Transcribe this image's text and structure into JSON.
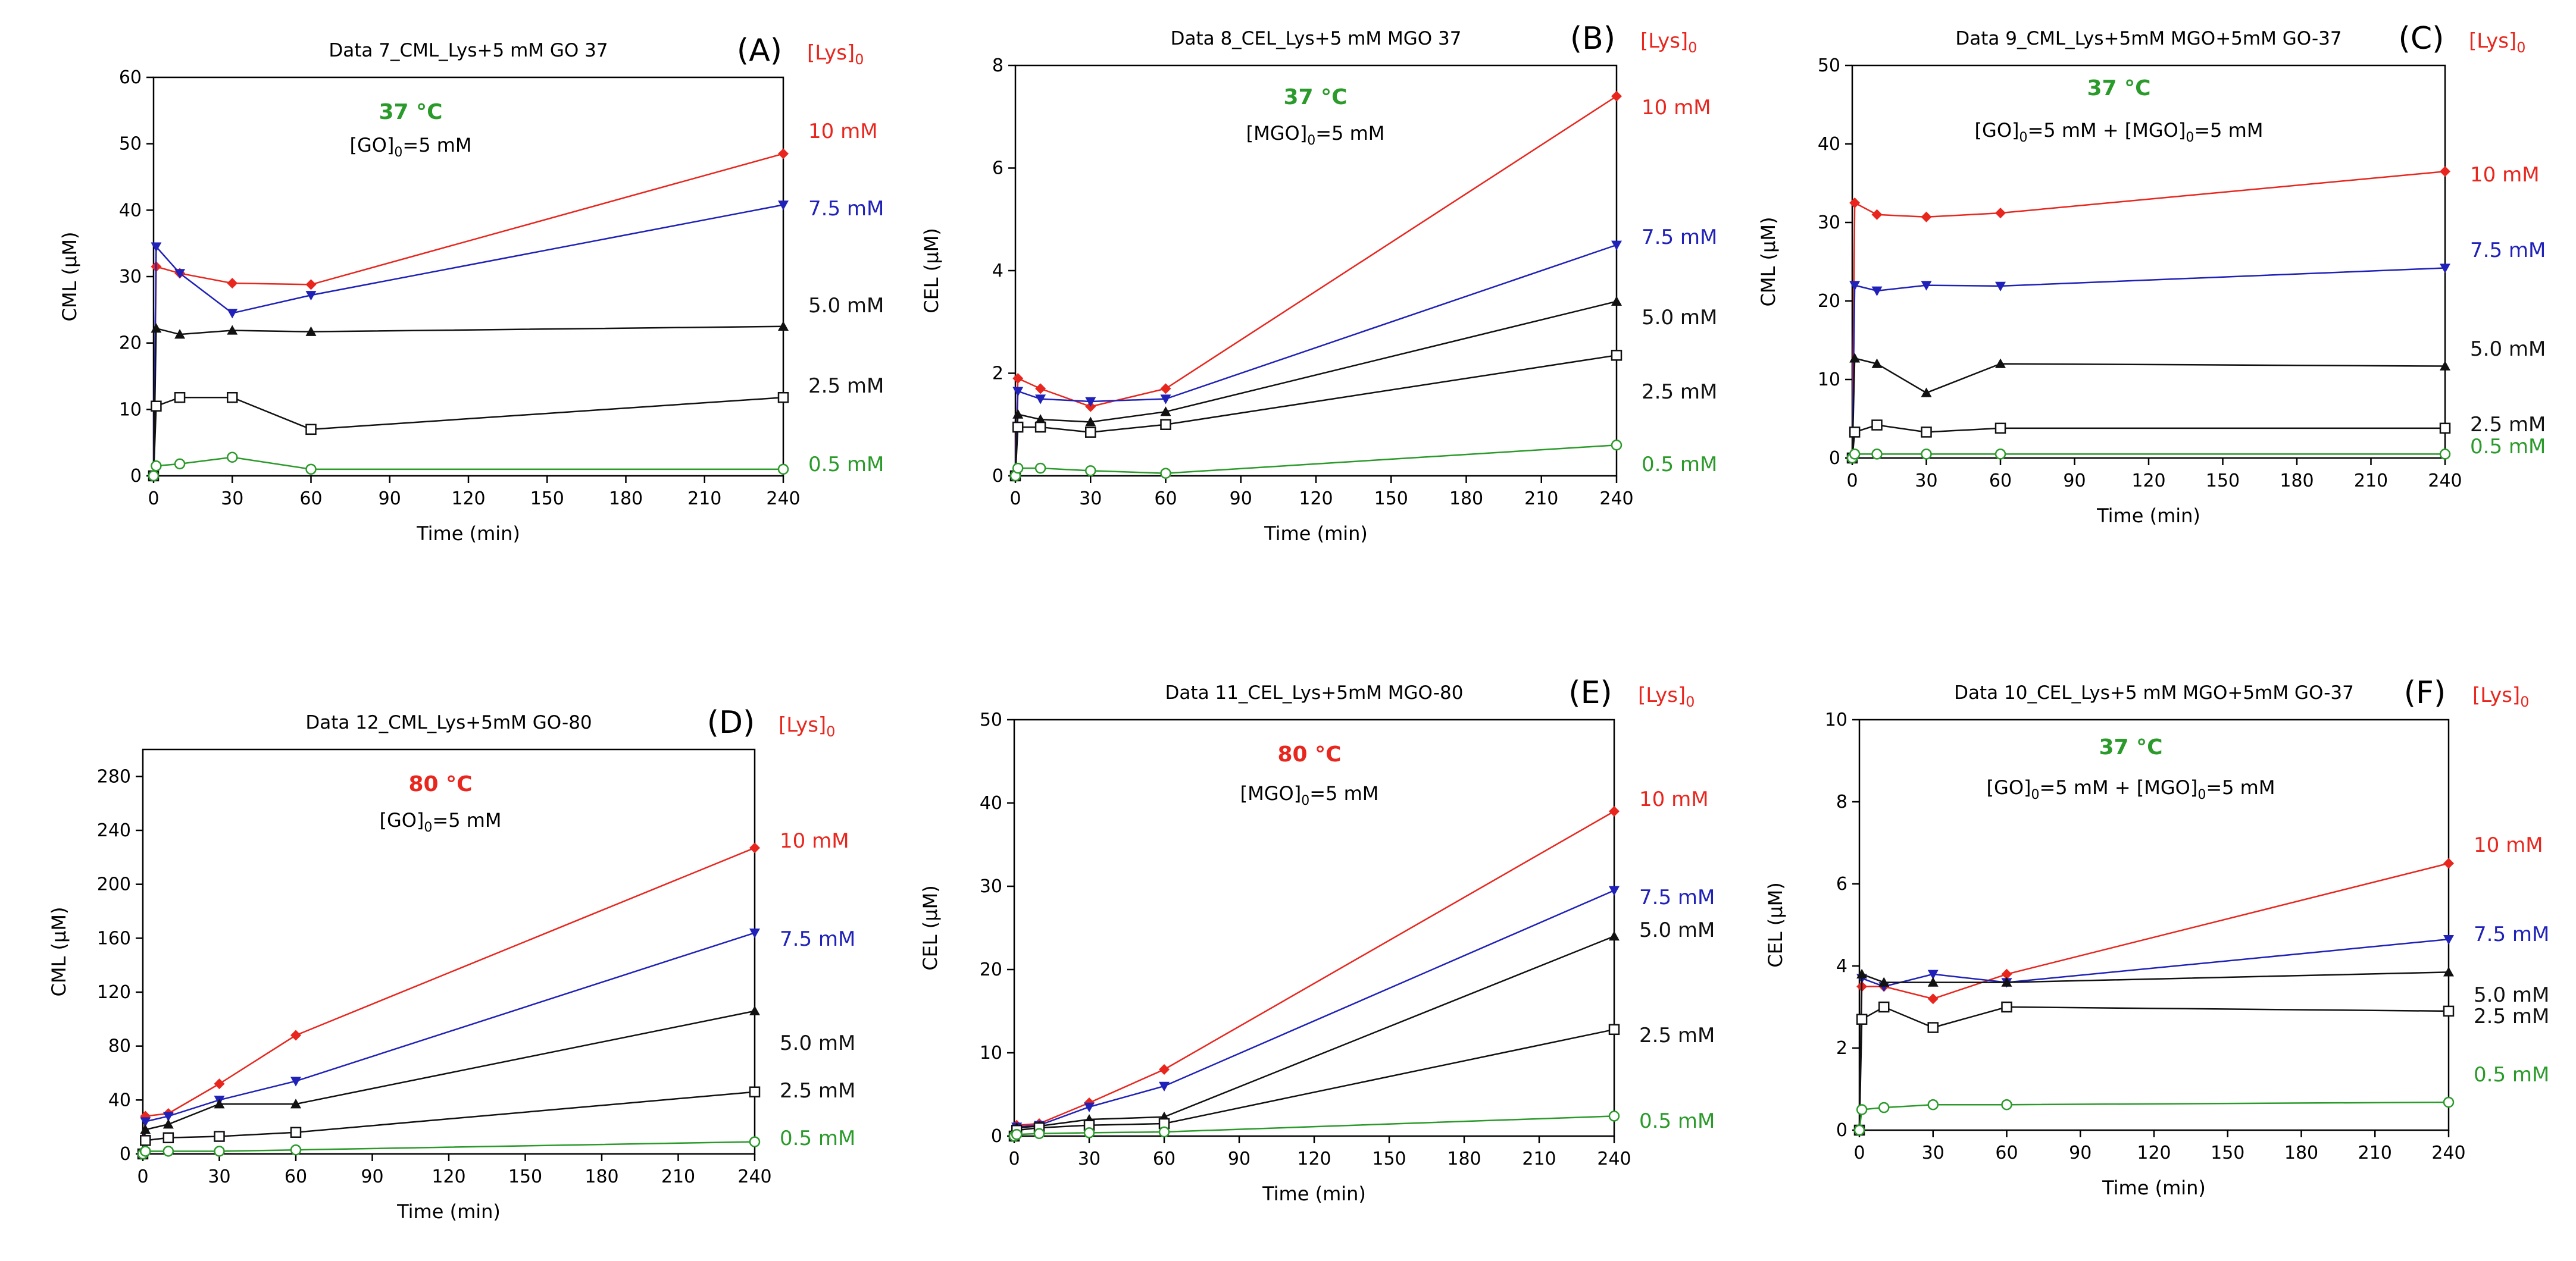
{
  "figure": {
    "description_free": true
  },
  "colors": {
    "red": "#e8261e",
    "blue": "#1f21b8",
    "black": "#111111",
    "green": "#2a9a2a",
    "axis": "#000000",
    "annot_green": "#2b8a1e",
    "annot_red": "#e8261e"
  },
  "lys_header": "[Lys]",
  "lys_header_sub": "0",
  "chart_data": [
    {
      "type": "line",
      "panel": "(A)",
      "title": "Data 7_CML_Lys+5 mM GO 37",
      "xlabel": "Time (min)",
      "ylabel": "CML (µM)",
      "xlim": [
        0,
        240
      ],
      "ylim": [
        0,
        60
      ],
      "xticks": [
        0,
        30,
        60,
        90,
        120,
        150,
        180,
        210,
        240
      ],
      "yticks": [
        0,
        10,
        20,
        30,
        40,
        50,
        60
      ],
      "temperature": "37 °C",
      "temperature_color": "green",
      "conc_prefix": "[GO]",
      "conc_sub": "0",
      "conc_suffix": "=5 mM",
      "conc_extra": null,
      "series": [
        {
          "name": "10 mM",
          "color": "red",
          "marker": "diamond",
          "x": [
            0,
            1,
            10,
            30,
            60,
            240
          ],
          "y": [
            0,
            31.5,
            30.5,
            29,
            28.8,
            48.5
          ]
        },
        {
          "name": "7.5 mM",
          "color": "blue",
          "marker": "tri-down",
          "x": [
            0,
            1,
            10,
            30,
            60,
            240
          ],
          "y": [
            0,
            34.5,
            30.5,
            24.5,
            27.2,
            40.8
          ]
        },
        {
          "name": "5.0 mM",
          "color": "black",
          "marker": "tri-up",
          "x": [
            0,
            1,
            10,
            30,
            60,
            240
          ],
          "y": [
            0,
            22.2,
            21.3,
            21.9,
            21.7,
            22.5
          ]
        },
        {
          "name": "2.5 mM",
          "color": "black",
          "marker": "square",
          "x": [
            0,
            1,
            10,
            30,
            60,
            240
          ],
          "y": [
            0,
            10.5,
            11.8,
            11.8,
            7,
            11.8
          ]
        },
        {
          "name": "0.5 mM",
          "color": "green",
          "marker": "circle",
          "x": [
            0,
            1,
            10,
            30,
            60,
            240
          ],
          "y": [
            0,
            1.5,
            1.8,
            2.8,
            1,
            1
          ]
        }
      ]
    },
    {
      "type": "line",
      "panel": "(B)",
      "title": "Data 8_CEL_Lys+5 mM MGO 37",
      "xlabel": "Time (min)",
      "ylabel": "CEL (µM)",
      "xlim": [
        0,
        240
      ],
      "ylim": [
        0,
        8
      ],
      "xticks": [
        0,
        30,
        60,
        90,
        120,
        150,
        180,
        210,
        240
      ],
      "yticks": [
        0,
        2,
        4,
        6,
        8
      ],
      "temperature": "37 °C",
      "temperature_color": "green",
      "conc_prefix": "[MGO]",
      "conc_sub": "0",
      "conc_suffix": "=5 mM",
      "conc_extra": null,
      "series": [
        {
          "name": "10 mM",
          "color": "red",
          "marker": "diamond",
          "x": [
            0,
            1,
            10,
            30,
            60,
            240
          ],
          "y": [
            0,
            1.9,
            1.7,
            1.35,
            1.7,
            7.4
          ]
        },
        {
          "name": "7.5 mM",
          "color": "blue",
          "marker": "tri-down",
          "x": [
            0,
            1,
            10,
            30,
            60,
            240
          ],
          "y": [
            0,
            1.65,
            1.5,
            1.45,
            1.5,
            4.5
          ]
        },
        {
          "name": "5.0 mM",
          "color": "black",
          "marker": "tri-up",
          "x": [
            0,
            1,
            10,
            30,
            60,
            240
          ],
          "y": [
            0,
            1.2,
            1.1,
            1.05,
            1.25,
            3.4
          ]
        },
        {
          "name": "2.5 mM",
          "color": "black",
          "marker": "square",
          "x": [
            0,
            1,
            10,
            30,
            60,
            240
          ],
          "y": [
            0,
            0.95,
            0.95,
            0.85,
            1.0,
            2.35
          ]
        },
        {
          "name": "0.5 mM",
          "color": "green",
          "marker": "circle",
          "x": [
            0,
            1,
            10,
            30,
            60,
            240
          ],
          "y": [
            0,
            0.15,
            0.15,
            0.1,
            0.05,
            0.6
          ]
        }
      ]
    },
    {
      "type": "line",
      "panel": "(C)",
      "title": "Data 9_CML_Lys+5mM MGO+5mM GO-37",
      "xlabel": "Time (min)",
      "ylabel": "CML (µM)",
      "xlim": [
        0,
        240
      ],
      "ylim": [
        0,
        50
      ],
      "xticks": [
        0,
        30,
        60,
        90,
        120,
        150,
        180,
        210,
        240
      ],
      "yticks": [
        0,
        10,
        20,
        30,
        40,
        50
      ],
      "temperature": "37 °C",
      "temperature_color": "green",
      "conc_prefix": "[GO]",
      "conc_sub": "0",
      "conc_suffix": "=5 mM + ",
      "conc_extra": {
        "prefix": "[MGO]",
        "sub": "0",
        "suffix": "=5 mM"
      },
      "series": [
        {
          "name": "10 mM",
          "color": "red",
          "marker": "diamond",
          "x": [
            0,
            1,
            10,
            30,
            60,
            240
          ],
          "y": [
            0,
            32.5,
            31,
            30.7,
            31.2,
            36.5
          ]
        },
        {
          "name": "7.5 mM",
          "color": "blue",
          "marker": "tri-down",
          "x": [
            0,
            1,
            10,
            30,
            60,
            240
          ],
          "y": [
            0,
            22,
            21.3,
            22,
            21.9,
            24.2
          ]
        },
        {
          "name": "5.0 mM",
          "color": "black",
          "marker": "tri-up",
          "x": [
            0,
            1,
            10,
            30,
            60,
            240
          ],
          "y": [
            0,
            12.7,
            12,
            8.3,
            12,
            11.7
          ]
        },
        {
          "name": "2.5 mM",
          "color": "black",
          "marker": "square",
          "x": [
            0,
            1,
            10,
            30,
            60,
            240
          ],
          "y": [
            0,
            3.3,
            4.2,
            3.3,
            3.8,
            3.8
          ]
        },
        {
          "name": "0.5 mM",
          "color": "green",
          "marker": "circle",
          "x": [
            0,
            1,
            10,
            30,
            60,
            240
          ],
          "y": [
            0,
            0.5,
            0.5,
            0.5,
            0.5,
            0.5
          ]
        }
      ]
    },
    {
      "type": "line",
      "panel": "(D)",
      "title": "Data 12_CML_Lys+5mM GO-80",
      "xlabel": "Time (min)",
      "ylabel": "CML (µM)",
      "xlim": [
        0,
        240
      ],
      "ylim": [
        0,
        300
      ],
      "xticks": [
        0,
        30,
        60,
        90,
        120,
        150,
        180,
        210,
        240
      ],
      "yticks": [
        0,
        40,
        80,
        120,
        160,
        200,
        240,
        280
      ],
      "temperature": "80 °C",
      "temperature_color": "red",
      "conc_prefix": "[GO]",
      "conc_sub": "0",
      "conc_suffix": "=5 mM",
      "conc_extra": null,
      "series": [
        {
          "name": "10 mM",
          "color": "red",
          "marker": "diamond",
          "x": [
            0,
            1,
            10,
            30,
            60,
            240
          ],
          "y": [
            0,
            28,
            30,
            52,
            88,
            227
          ]
        },
        {
          "name": "7.5 mM",
          "color": "blue",
          "marker": "tri-down",
          "x": [
            0,
            1,
            10,
            30,
            60,
            240
          ],
          "y": [
            0,
            24,
            28,
            40,
            54,
            164
          ]
        },
        {
          "name": "5.0 mM",
          "color": "black",
          "marker": "tri-up",
          "x": [
            0,
            1,
            10,
            30,
            60,
            240
          ],
          "y": [
            0,
            18,
            22,
            37,
            37,
            106
          ]
        },
        {
          "name": "2.5 mM",
          "color": "black",
          "marker": "square",
          "x": [
            0,
            1,
            10,
            30,
            60,
            240
          ],
          "y": [
            0,
            10,
            12,
            13,
            16,
            46
          ]
        },
        {
          "name": "0.5 mM",
          "color": "green",
          "marker": "circle",
          "x": [
            0,
            1,
            10,
            30,
            60,
            240
          ],
          "y": [
            0,
            2,
            2,
            2,
            3,
            9
          ]
        }
      ]
    },
    {
      "type": "line",
      "panel": "(E)",
      "title": "Data 11_CEL_Lys+5mM MGO-80",
      "xlabel": "Time (min)",
      "ylabel": "CEL (µM)",
      "xlim": [
        0,
        240
      ],
      "ylim": [
        0,
        50
      ],
      "xticks": [
        0,
        30,
        60,
        90,
        120,
        150,
        180,
        210,
        240
      ],
      "yticks": [
        0,
        10,
        20,
        30,
        40,
        50
      ],
      "temperature": "80 °C",
      "temperature_color": "red",
      "conc_prefix": "[MGO]",
      "conc_sub": "0",
      "conc_suffix": "=5 mM",
      "conc_extra": null,
      "series": [
        {
          "name": "10 mM",
          "color": "red",
          "marker": "diamond",
          "x": [
            0,
            1,
            10,
            30,
            60,
            240
          ],
          "y": [
            0,
            1.3,
            1.5,
            4,
            8,
            39
          ]
        },
        {
          "name": "7.5 mM",
          "color": "blue",
          "marker": "tri-down",
          "x": [
            0,
            1,
            10,
            30,
            60,
            240
          ],
          "y": [
            0,
            1.1,
            1.3,
            3.5,
            6,
            29.5
          ]
        },
        {
          "name": "5.0 mM",
          "color": "black",
          "marker": "tri-up",
          "x": [
            0,
            1,
            10,
            30,
            60,
            240
          ],
          "y": [
            0,
            1,
            1.2,
            2,
            2.3,
            24
          ]
        },
        {
          "name": "2.5 mM",
          "color": "black",
          "marker": "square",
          "x": [
            0,
            1,
            10,
            30,
            60,
            240
          ],
          "y": [
            0,
            0.7,
            1,
            1.3,
            1.5,
            12.8
          ]
        },
        {
          "name": "0.5 mM",
          "color": "green",
          "marker": "circle",
          "x": [
            0,
            1,
            10,
            30,
            60,
            240
          ],
          "y": [
            0,
            0.2,
            0.3,
            0.4,
            0.5,
            2.4
          ]
        }
      ]
    },
    {
      "type": "line",
      "panel": "(F)",
      "title": "Data 10_CEL_Lys+5 mM MGO+5mM GO-37",
      "xlabel": "Time (min)",
      "ylabel": "CEL (µM)",
      "xlim": [
        0,
        240
      ],
      "ylim": [
        0,
        10
      ],
      "xticks": [
        0,
        30,
        60,
        90,
        120,
        150,
        180,
        210,
        240
      ],
      "yticks": [
        0,
        2,
        4,
        6,
        8,
        10
      ],
      "temperature": "37 °C",
      "temperature_color": "green",
      "conc_prefix": "[GO]",
      "conc_sub": "0",
      "conc_suffix": "=5 mM + ",
      "conc_extra": {
        "prefix": "[MGO]",
        "sub": "0",
        "suffix": "=5 mM"
      },
      "series": [
        {
          "name": "10 mM",
          "color": "red",
          "marker": "diamond",
          "x": [
            0,
            1,
            10,
            30,
            60,
            240
          ],
          "y": [
            0,
            3.5,
            3.5,
            3.2,
            3.8,
            6.5
          ]
        },
        {
          "name": "7.5 mM",
          "color": "blue",
          "marker": "tri-down",
          "x": [
            0,
            1,
            10,
            30,
            60,
            240
          ],
          "y": [
            0,
            3.7,
            3.5,
            3.8,
            3.6,
            4.65
          ]
        },
        {
          "name": "5.0 mM",
          "color": "black",
          "marker": "tri-up",
          "x": [
            0,
            1,
            10,
            30,
            60,
            240
          ],
          "y": [
            0,
            3.8,
            3.6,
            3.6,
            3.6,
            3.85
          ]
        },
        {
          "name": "2.5 mM",
          "color": "black",
          "marker": "square",
          "x": [
            0,
            1,
            10,
            30,
            60,
            240
          ],
          "y": [
            0,
            2.7,
            3.0,
            2.5,
            3.0,
            2.9
          ]
        },
        {
          "name": "0.5 mM",
          "color": "green",
          "marker": "circle",
          "x": [
            0,
            1,
            10,
            30,
            60,
            240
          ],
          "y": [
            0,
            0.5,
            0.55,
            0.62,
            0.62,
            0.68
          ]
        }
      ]
    }
  ]
}
